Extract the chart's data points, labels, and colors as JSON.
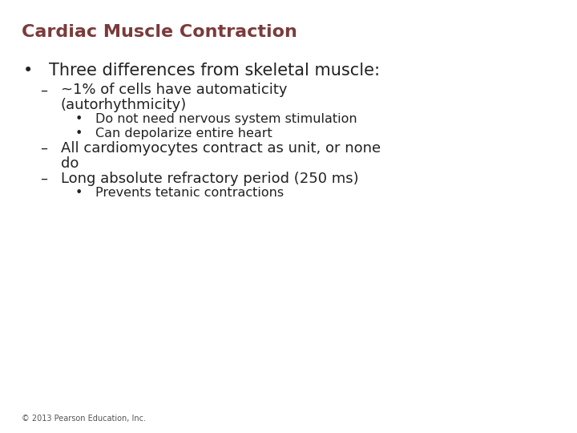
{
  "title": "Cardiac Muscle Contraction",
  "title_color": "#7B3B3B",
  "background_color": "#FFFFFF",
  "text_color": "#222222",
  "footer": "© 2013 Pearson Education, Inc.",
  "font_sizes": {
    "title": 16,
    "level1": 15,
    "level2": 13,
    "level3": 11.5,
    "footer": 7
  },
  "indent": {
    "level1_bullet": 0.04,
    "level1_text": 0.085,
    "level2_bullet": 0.07,
    "level2_text": 0.105,
    "level2_cont": 0.105,
    "level3_bullet": 0.13,
    "level3_text": 0.165
  },
  "items": [
    {
      "level": 1,
      "bullet": "•",
      "lines": [
        "Three differences from skeletal muscle:"
      ]
    },
    {
      "level": 2,
      "bullet": "–",
      "lines": [
        "~1% of cells have automaticity",
        "(autorhythmicity)"
      ]
    },
    {
      "level": 3,
      "bullet": "•",
      "lines": [
        "Do not need nervous system stimulation"
      ]
    },
    {
      "level": 3,
      "bullet": "•",
      "lines": [
        "Can depolarize entire heart"
      ]
    },
    {
      "level": 2,
      "bullet": "–",
      "lines": [
        "All cardiomyocytes contract as unit, or none",
        "do"
      ]
    },
    {
      "level": 2,
      "bullet": "–",
      "lines": [
        "Long absolute refractory period (250 ms)"
      ]
    },
    {
      "level": 3,
      "bullet": "•",
      "lines": [
        "Prevents tetanic contractions"
      ]
    }
  ]
}
